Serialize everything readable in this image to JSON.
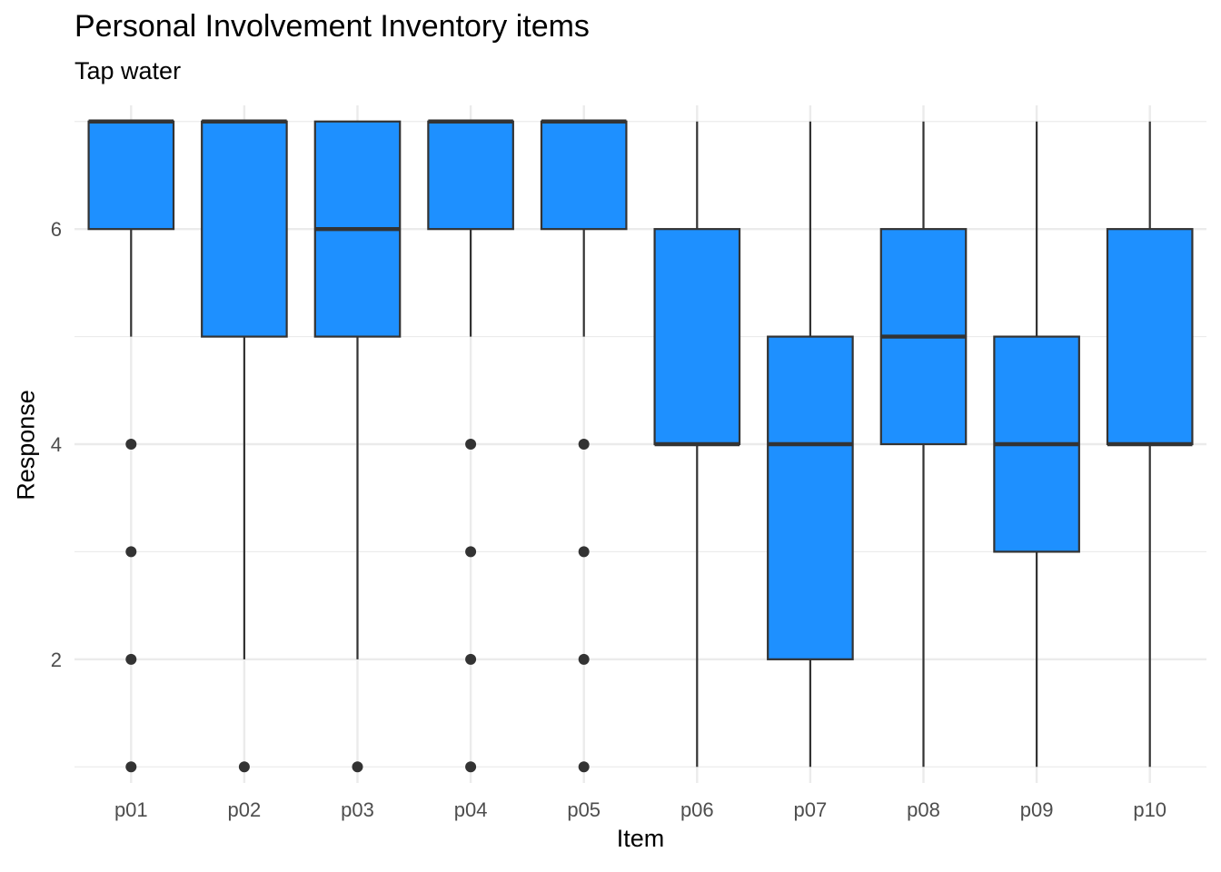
{
  "chart_data": {
    "type": "boxplot",
    "title": "Personal Involvement Inventory items",
    "subtitle": "Tap water",
    "xlabel": "Item",
    "ylabel": "Response",
    "ylim": [
      0.85,
      7.15
    ],
    "yticks": [
      2,
      4,
      6
    ],
    "grid": true,
    "fill_color": "#1E90FF",
    "outline_color": "#333333",
    "categories": [
      "p01",
      "p02",
      "p03",
      "p04",
      "p05",
      "p06",
      "p07",
      "p08",
      "p09",
      "p10"
    ],
    "boxes": [
      {
        "item": "p01",
        "lower_whisker": 5,
        "q1": 6,
        "median": 7,
        "q3": 7,
        "upper_whisker": 7,
        "outliers": [
          1,
          2,
          3,
          4
        ]
      },
      {
        "item": "p02",
        "lower_whisker": 2,
        "q1": 5,
        "median": 7,
        "q3": 7,
        "upper_whisker": 7,
        "outliers": [
          1
        ]
      },
      {
        "item": "p03",
        "lower_whisker": 2,
        "q1": 5,
        "median": 6,
        "q3": 7,
        "upper_whisker": 7,
        "outliers": [
          1
        ]
      },
      {
        "item": "p04",
        "lower_whisker": 5,
        "q1": 6,
        "median": 7,
        "q3": 7,
        "upper_whisker": 7,
        "outliers": [
          1,
          2,
          3,
          4
        ]
      },
      {
        "item": "p05",
        "lower_whisker": 5,
        "q1": 6,
        "median": 7,
        "q3": 7,
        "upper_whisker": 7,
        "outliers": [
          1,
          2,
          3,
          4
        ]
      },
      {
        "item": "p06",
        "lower_whisker": 1,
        "q1": 4,
        "median": 4,
        "q3": 6,
        "upper_whisker": 7,
        "outliers": []
      },
      {
        "item": "p07",
        "lower_whisker": 1,
        "q1": 2,
        "median": 4,
        "q3": 5,
        "upper_whisker": 7,
        "outliers": []
      },
      {
        "item": "p08",
        "lower_whisker": 1,
        "q1": 4,
        "median": 5,
        "q3": 6,
        "upper_whisker": 7,
        "outliers": []
      },
      {
        "item": "p09",
        "lower_whisker": 1,
        "q1": 3,
        "median": 4,
        "q3": 5,
        "upper_whisker": 7,
        "outliers": []
      },
      {
        "item": "p10",
        "lower_whisker": 1,
        "q1": 4,
        "median": 4,
        "q3": 6,
        "upper_whisker": 7,
        "outliers": []
      }
    ]
  }
}
